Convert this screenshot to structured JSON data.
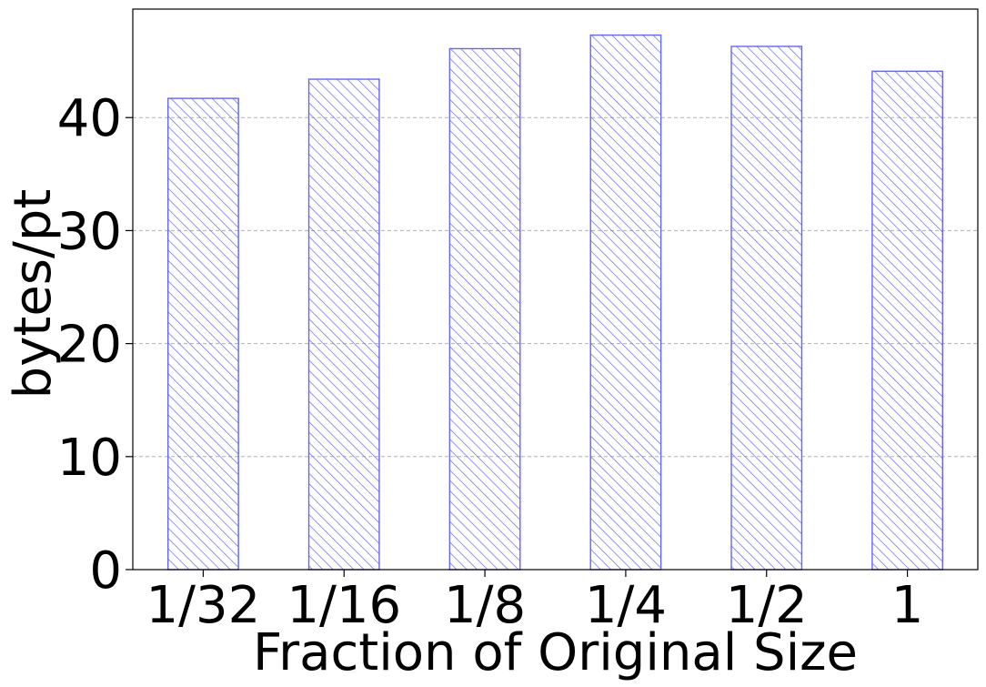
{
  "chart_data": {
    "type": "bar",
    "title": "",
    "xlabel": "Fraction of Original Size",
    "ylabel": "bytes/pt",
    "categories": [
      "1/32",
      "1/16",
      "1/8",
      "1/4",
      "1/2",
      "1"
    ],
    "values": [
      41.7,
      43.4,
      46.1,
      47.3,
      46.3,
      44.1
    ],
    "ylim": [
      0,
      49.6
    ],
    "yticks": [
      0,
      10,
      20,
      30,
      40
    ],
    "grid": "y-dashed",
    "legend": "none",
    "bar_style": "hatched",
    "colors": {
      "bar_edge": "#6666ee",
      "hatch": "#6666ee",
      "grid": "#b0b0b0",
      "axis": "#000000"
    }
  }
}
